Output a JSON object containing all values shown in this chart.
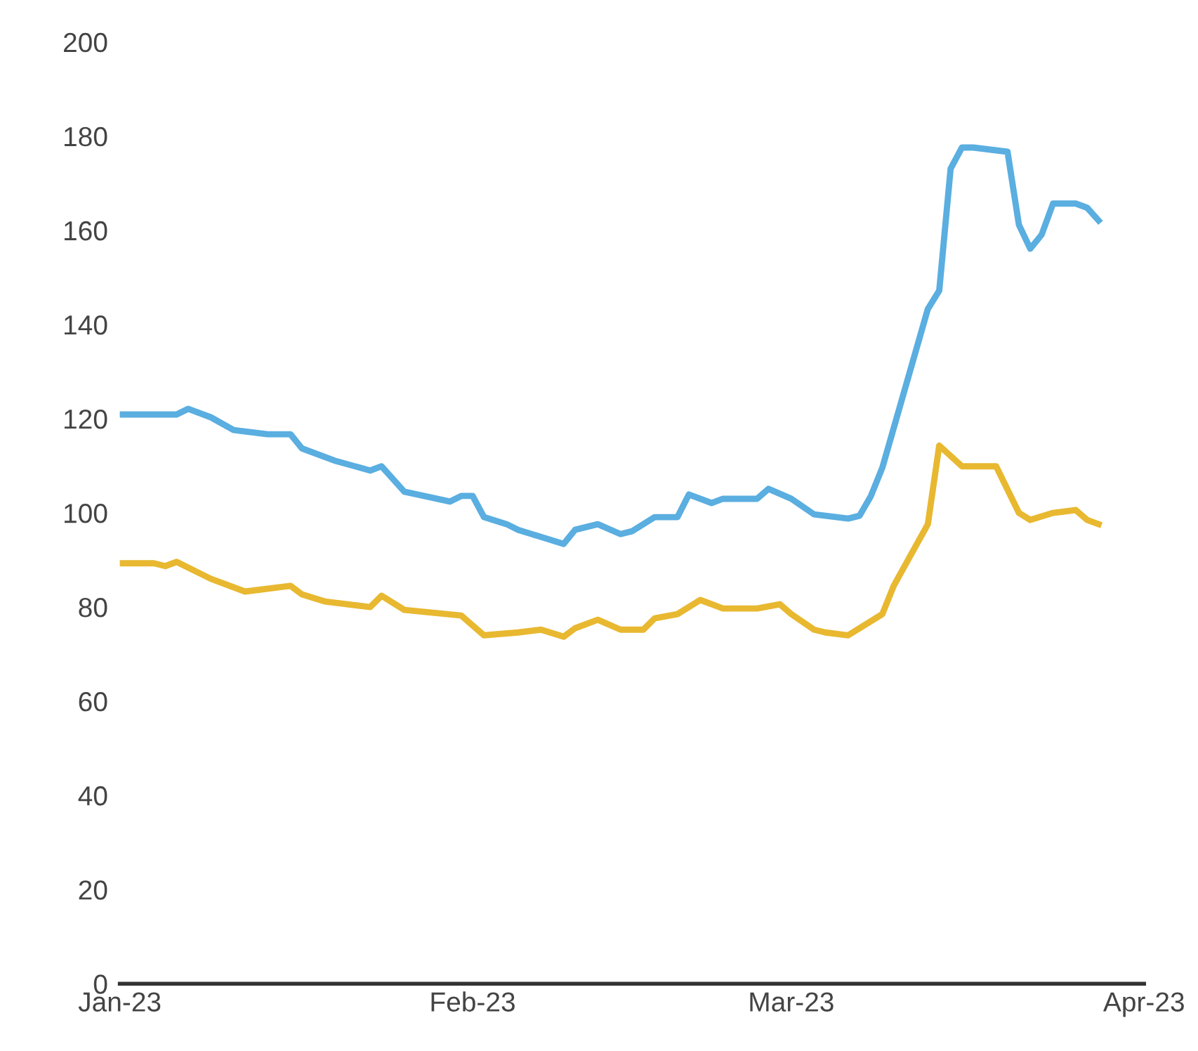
{
  "chart_data": {
    "type": "line",
    "xlim": [
      "2023-01-01",
      "2023-04-01"
    ],
    "xticks": [
      {
        "value": "2023-01-01",
        "label": "Jan-23"
      },
      {
        "value": "2023-02-01",
        "label": "Feb-23"
      },
      {
        "value": "2023-03-01",
        "label": "Mar-23"
      },
      {
        "value": "2023-04-01",
        "label": "Apr-23"
      }
    ],
    "ylim": [
      0,
      200
    ],
    "yticks": [
      0,
      20,
      40,
      60,
      80,
      100,
      120,
      140,
      160,
      180,
      200
    ],
    "grid": false,
    "marker": "none",
    "line_style": "solid",
    "series": [
      {
        "color": "#5aaee0",
        "x": [
          "2023-01-01",
          "2023-01-06",
          "2023-01-07",
          "2023-01-09",
          "2023-01-11",
          "2023-01-14",
          "2023-01-16",
          "2023-01-17",
          "2023-01-20",
          "2023-01-23",
          "2023-01-24",
          "2023-01-26",
          "2023-01-30",
          "2023-01-31",
          "2023-02-01",
          "2023-02-02",
          "2023-02-04",
          "2023-02-05",
          "2023-02-09",
          "2023-02-10",
          "2023-02-12",
          "2023-02-14",
          "2023-02-15",
          "2023-02-17",
          "2023-02-19",
          "2023-02-20",
          "2023-02-22",
          "2023-02-23",
          "2023-02-26",
          "2023-02-27",
          "2023-03-01",
          "2023-03-03",
          "2023-03-06",
          "2023-03-07",
          "2023-03-08",
          "2023-03-09",
          "2023-03-13",
          "2023-03-14",
          "2023-03-15",
          "2023-03-16",
          "2023-03-17",
          "2023-03-20",
          "2023-03-21",
          "2023-03-22",
          "2023-03-23",
          "2023-03-24",
          "2023-03-26",
          "2023-03-27",
          "2023-03-28"
        ],
        "values": [
          120.9,
          120.9,
          122.1,
          120.3,
          117.6,
          116.7,
          116.7,
          113.7,
          111.0,
          109.0,
          109.9,
          104.5,
          102.4,
          103.6,
          103.6,
          99.1,
          97.6,
          96.4,
          93.4,
          96.4,
          97.6,
          95.5,
          96.1,
          99.1,
          99.1,
          103.9,
          102.1,
          103.0,
          103.0,
          105.1,
          103.0,
          99.7,
          98.8,
          99.4,
          103.6,
          109.6,
          143.3,
          147.2,
          173.1,
          177.6,
          177.6,
          176.7,
          161.2,
          156.1,
          159.1,
          165.7,
          165.7,
          164.8,
          162.1
        ]
      },
      {
        "color": "#e8b830",
        "x": [
          "2023-01-01",
          "2023-01-04",
          "2023-01-05",
          "2023-01-06",
          "2023-01-09",
          "2023-01-12",
          "2023-01-16",
          "2023-01-17",
          "2023-01-19",
          "2023-01-23",
          "2023-01-24",
          "2023-01-26",
          "2023-01-31",
          "2023-02-02",
          "2023-02-05",
          "2023-02-07",
          "2023-02-09",
          "2023-02-10",
          "2023-02-12",
          "2023-02-14",
          "2023-02-16",
          "2023-02-17",
          "2023-02-19",
          "2023-02-21",
          "2023-02-23",
          "2023-02-26",
          "2023-02-28",
          "2023-03-01",
          "2023-03-03",
          "2023-03-04",
          "2023-03-06",
          "2023-03-09",
          "2023-03-10",
          "2023-03-13",
          "2023-03-14",
          "2023-03-16",
          "2023-03-19",
          "2023-03-21",
          "2023-03-22",
          "2023-03-24",
          "2023-03-26",
          "2023-03-27",
          "2023-03-28"
        ],
        "values": [
          89.3,
          89.3,
          88.7,
          89.6,
          86.0,
          83.3,
          84.5,
          82.7,
          81.2,
          80.0,
          82.4,
          79.4,
          78.2,
          74.0,
          74.6,
          75.2,
          73.7,
          75.5,
          77.3,
          75.2,
          75.2,
          77.6,
          78.5,
          81.5,
          79.7,
          79.7,
          80.6,
          78.5,
          75.2,
          74.6,
          74.0,
          78.5,
          84.5,
          97.6,
          114.3,
          109.9,
          109.9,
          100.0,
          98.5,
          100.0,
          100.6,
          98.5,
          97.6
        ]
      }
    ]
  }
}
